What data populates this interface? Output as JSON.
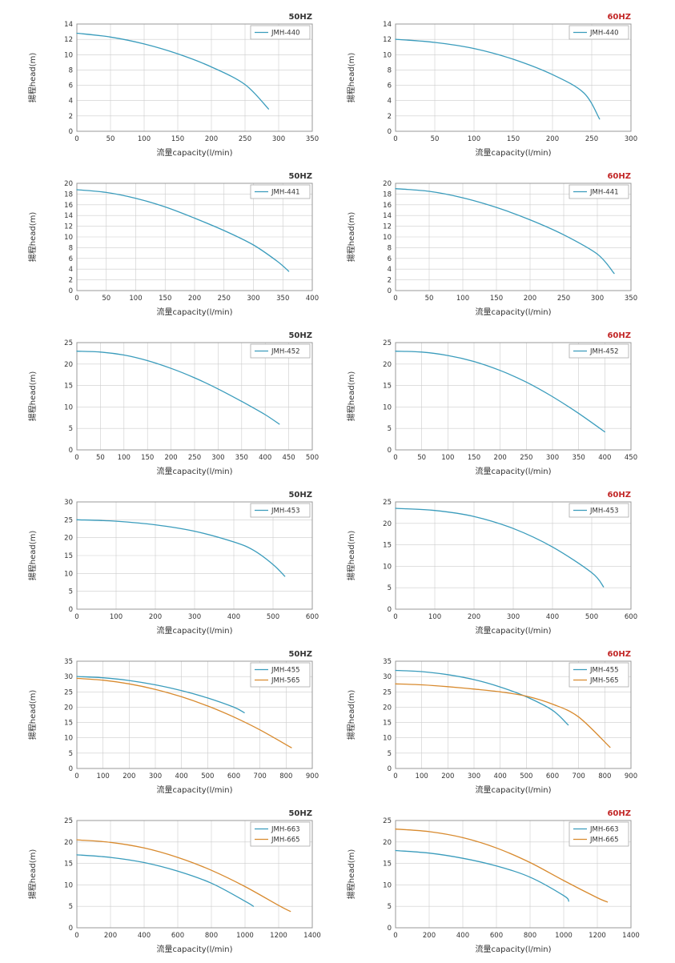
{
  "page": {
    "background": "#ffffff"
  },
  "colors": {
    "series_blue": "#3a9cbc",
    "series_orange": "#d88a2e",
    "title_50hz": "#333333",
    "title_60hz": "#c22626",
    "grid": "#cccccc",
    "border": "#999999",
    "legend_border": "#aaaaaa",
    "text": "#333333"
  },
  "chart_data": [
    {
      "type": "line",
      "title": "50HZ",
      "title_color": "#333333",
      "xlabel": "流量capacity(l/min)",
      "ylabel": "揚程head(m)",
      "xlim": [
        0,
        350
      ],
      "xstep": 50,
      "ylim": [
        0,
        14
      ],
      "ystep": 2,
      "grid": true,
      "legend_position": "top-right",
      "series": [
        {
          "name": "JMH-440",
          "color": "#3a9cbc",
          "points": [
            [
              0,
              12.8
            ],
            [
              50,
              12.3
            ],
            [
              100,
              11.4
            ],
            [
              150,
              10.1
            ],
            [
              200,
              8.4
            ],
            [
              250,
              6.1
            ],
            [
              285,
              2.9
            ]
          ]
        }
      ]
    },
    {
      "type": "line",
      "title": "60HZ",
      "title_color": "#c22626",
      "xlabel": "流量capacity(l/min)",
      "ylabel": "揚程head(m)",
      "xlim": [
        0,
        300
      ],
      "xstep": 50,
      "ylim": [
        0,
        14
      ],
      "ystep": 2,
      "grid": true,
      "legend_position": "top-right",
      "series": [
        {
          "name": "JMH-440",
          "color": "#3a9cbc",
          "points": [
            [
              0,
              12.0
            ],
            [
              50,
              11.6
            ],
            [
              100,
              10.8
            ],
            [
              150,
              9.4
            ],
            [
              200,
              7.4
            ],
            [
              240,
              5.0
            ],
            [
              260,
              1.6
            ]
          ]
        }
      ]
    },
    {
      "type": "line",
      "title": "50HZ",
      "title_color": "#333333",
      "xlabel": "流量capacity(l/min)",
      "ylabel": "揚程head(m)",
      "xlim": [
        0,
        400
      ],
      "xstep": 50,
      "ylim": [
        0,
        20
      ],
      "ystep": 2,
      "grid": true,
      "legend_position": "top-right",
      "series": [
        {
          "name": "JMH-441",
          "color": "#3a9cbc",
          "points": [
            [
              0,
              18.8
            ],
            [
              50,
              18.3
            ],
            [
              100,
              17.2
            ],
            [
              150,
              15.6
            ],
            [
              200,
              13.5
            ],
            [
              250,
              11.2
            ],
            [
              300,
              8.5
            ],
            [
              340,
              5.5
            ],
            [
              360,
              3.6
            ]
          ]
        }
      ]
    },
    {
      "type": "line",
      "title": "60HZ",
      "title_color": "#c22626",
      "xlabel": "流量capacity(l/min)",
      "ylabel": "揚程head(m)",
      "xlim": [
        0,
        350
      ],
      "xstep": 50,
      "ylim": [
        0,
        20
      ],
      "ystep": 2,
      "grid": true,
      "legend_position": "top-right",
      "series": [
        {
          "name": "JMH-441",
          "color": "#3a9cbc",
          "points": [
            [
              0,
              19.0
            ],
            [
              50,
              18.5
            ],
            [
              100,
              17.3
            ],
            [
              150,
              15.5
            ],
            [
              200,
              13.2
            ],
            [
              250,
              10.4
            ],
            [
              300,
              6.8
            ],
            [
              325,
              3.2
            ]
          ]
        }
      ]
    },
    {
      "type": "line",
      "title": "50HZ",
      "title_color": "#333333",
      "xlabel": "流量capacity(l/min)",
      "ylabel": "揚程head(m)",
      "xlim": [
        0,
        500
      ],
      "xstep": 50,
      "ylim": [
        0,
        25
      ],
      "ystep": 5,
      "grid": true,
      "legend_position": "top-right",
      "series": [
        {
          "name": "JMH-452",
          "color": "#3a9cbc",
          "points": [
            [
              0,
              23.0
            ],
            [
              50,
              22.8
            ],
            [
              100,
              22.1
            ],
            [
              150,
              20.8
            ],
            [
              200,
              19.0
            ],
            [
              250,
              16.8
            ],
            [
              300,
              14.2
            ],
            [
              350,
              11.3
            ],
            [
              400,
              8.2
            ],
            [
              430,
              6.0
            ]
          ]
        }
      ]
    },
    {
      "type": "line",
      "title": "60HZ",
      "title_color": "#c22626",
      "xlabel": "流量capacity(l/min)",
      "ylabel": "揚程head(m)",
      "xlim": [
        0,
        450
      ],
      "xstep": 50,
      "ylim": [
        0,
        25
      ],
      "ystep": 5,
      "grid": true,
      "legend_position": "top-right",
      "series": [
        {
          "name": "JMH-452",
          "color": "#3a9cbc",
          "points": [
            [
              0,
              23.0
            ],
            [
              50,
              22.8
            ],
            [
              100,
              22.0
            ],
            [
              150,
              20.6
            ],
            [
              200,
              18.5
            ],
            [
              250,
              15.8
            ],
            [
              300,
              12.4
            ],
            [
              350,
              8.5
            ],
            [
              400,
              4.2
            ]
          ]
        }
      ]
    },
    {
      "type": "line",
      "title": "50HZ",
      "title_color": "#333333",
      "xlabel": "流量capacity(l/min)",
      "ylabel": "揚程head(m)",
      "xlim": [
        0,
        600
      ],
      "xstep": 100,
      "ylim": [
        0,
        30
      ],
      "ystep": 5,
      "grid": true,
      "legend_position": "top-right",
      "series": [
        {
          "name": "JMH-453",
          "color": "#3a9cbc",
          "points": [
            [
              0,
              25.0
            ],
            [
              100,
              24.6
            ],
            [
              200,
              23.6
            ],
            [
              300,
              21.8
            ],
            [
              400,
              18.8
            ],
            [
              450,
              16.5
            ],
            [
              500,
              12.5
            ],
            [
              530,
              9.2
            ]
          ]
        }
      ]
    },
    {
      "type": "line",
      "title": "60HZ",
      "title_color": "#c22626",
      "xlabel": "流量capacity(l/min)",
      "ylabel": "揚程head(m)",
      "xlim": [
        0,
        600
      ],
      "xstep": 100,
      "ylim": [
        0,
        25
      ],
      "ystep": 5,
      "grid": true,
      "legend_position": "top-right",
      "series": [
        {
          "name": "JMH-453",
          "color": "#3a9cbc",
          "points": [
            [
              0,
              23.5
            ],
            [
              100,
              23.0
            ],
            [
              200,
              21.6
            ],
            [
              300,
              18.8
            ],
            [
              400,
              14.5
            ],
            [
              500,
              8.5
            ],
            [
              530,
              5.2
            ]
          ]
        }
      ]
    },
    {
      "type": "line",
      "title": "50HZ",
      "title_color": "#333333",
      "xlabel": "流量capacity(l/min)",
      "ylabel": "揚程head(m)",
      "xlim": [
        0,
        900
      ],
      "xstep": 100,
      "ylim": [
        0,
        35
      ],
      "ystep": 5,
      "grid": true,
      "legend_position": "top-right",
      "series": [
        {
          "name": "JMH-455",
          "color": "#3a9cbc",
          "points": [
            [
              0,
              30.0
            ],
            [
              100,
              29.6
            ],
            [
              200,
              28.7
            ],
            [
              300,
              27.3
            ],
            [
              400,
              25.4
            ],
            [
              500,
              23.0
            ],
            [
              600,
              20.0
            ],
            [
              640,
              18.2
            ]
          ]
        },
        {
          "name": "JMH-565",
          "color": "#d88a2e",
          "points": [
            [
              0,
              29.4
            ],
            [
              100,
              28.8
            ],
            [
              200,
              27.6
            ],
            [
              300,
              25.8
            ],
            [
              400,
              23.4
            ],
            [
              500,
              20.4
            ],
            [
              600,
              16.8
            ],
            [
              700,
              12.6
            ],
            [
              820,
              6.8
            ]
          ]
        }
      ]
    },
    {
      "type": "line",
      "title": "60HZ",
      "title_color": "#c22626",
      "xlabel": "流量capacity(l/min)",
      "ylabel": "揚程head(m)",
      "xlim": [
        0,
        900
      ],
      "xstep": 100,
      "ylim": [
        0,
        35
      ],
      "ystep": 5,
      "grid": true,
      "legend_position": "top-right",
      "series": [
        {
          "name": "JMH-455",
          "color": "#3a9cbc",
          "points": [
            [
              0,
              32.0
            ],
            [
              100,
              31.6
            ],
            [
              200,
              30.6
            ],
            [
              300,
              29.0
            ],
            [
              400,
              26.6
            ],
            [
              500,
              23.4
            ],
            [
              600,
              19.0
            ],
            [
              660,
              14.2
            ]
          ]
        },
        {
          "name": "JMH-565",
          "color": "#d88a2e",
          "points": [
            [
              0,
              27.6
            ],
            [
              100,
              27.3
            ],
            [
              200,
              26.7
            ],
            [
              300,
              25.9
            ],
            [
              400,
              25.0
            ],
            [
              500,
              23.6
            ],
            [
              600,
              21.0
            ],
            [
              700,
              16.8
            ],
            [
              820,
              6.9
            ]
          ]
        }
      ]
    },
    {
      "type": "line",
      "title": "50HZ",
      "title_color": "#333333",
      "xlabel": "流量capacity(l/min)",
      "ylabel": "揚程head(m)",
      "xlim": [
        0,
        1400
      ],
      "xstep": 200,
      "ylim": [
        0,
        25
      ],
      "ystep": 5,
      "grid": true,
      "legend_position": "top-right",
      "series": [
        {
          "name": "JMH-663",
          "color": "#3a9cbc",
          "points": [
            [
              0,
              17.0
            ],
            [
              200,
              16.4
            ],
            [
              400,
              15.2
            ],
            [
              600,
              13.2
            ],
            [
              800,
              10.4
            ],
            [
              1000,
              6.2
            ],
            [
              1050,
              5.0
            ]
          ]
        },
        {
          "name": "JMH-665",
          "color": "#d88a2e",
          "points": [
            [
              0,
              20.5
            ],
            [
              200,
              19.9
            ],
            [
              400,
              18.6
            ],
            [
              600,
              16.4
            ],
            [
              800,
              13.4
            ],
            [
              1000,
              9.6
            ],
            [
              1200,
              5.2
            ],
            [
              1270,
              3.8
            ]
          ]
        }
      ]
    },
    {
      "type": "line",
      "title": "60HZ",
      "title_color": "#c22626",
      "xlabel": "流量capacity(l/min)",
      "ylabel": "揚程head(m)",
      "xlim": [
        0,
        1400
      ],
      "xstep": 200,
      "ylim": [
        0,
        25
      ],
      "ystep": 5,
      "grid": true,
      "legend_position": "top-right",
      "series": [
        {
          "name": "JMH-663",
          "color": "#3a9cbc",
          "points": [
            [
              0,
              18.0
            ],
            [
              200,
              17.4
            ],
            [
              400,
              16.2
            ],
            [
              600,
              14.4
            ],
            [
              800,
              11.8
            ],
            [
              1000,
              7.5
            ],
            [
              1030,
              6.2
            ]
          ]
        },
        {
          "name": "JMH-665",
          "color": "#d88a2e",
          "points": [
            [
              0,
              23.0
            ],
            [
              200,
              22.4
            ],
            [
              400,
              21.0
            ],
            [
              600,
              18.6
            ],
            [
              800,
              15.2
            ],
            [
              1000,
              11.0
            ],
            [
              1200,
              7.0
            ],
            [
              1260,
              6.0
            ]
          ]
        }
      ]
    }
  ]
}
